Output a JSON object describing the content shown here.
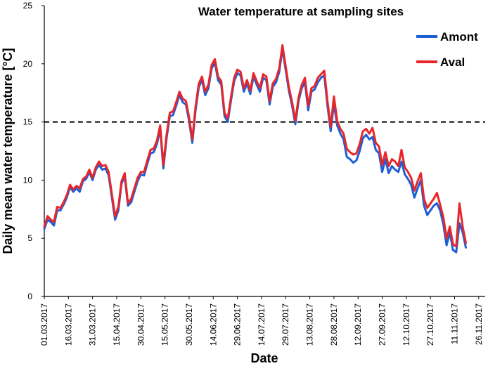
{
  "chart_data": {
    "type": "line",
    "title": "Water temperature at sampling sites",
    "xlabel": "Date",
    "ylabel": "Daily mean water temperature [°C]",
    "ylim": [
      0,
      25
    ],
    "yticks": [
      "0",
      "5",
      "10",
      "15",
      "20",
      "25"
    ],
    "xlim": [
      "01.03.2017",
      "30.11.2017"
    ],
    "xtick_labels": [
      "01.03.2017",
      "16.03.2017",
      "31.03.2017",
      "15.04.2017",
      "30.04.2017",
      "15.05.2017",
      "30.05.2017",
      "14.06.2017",
      "29.06.2017",
      "14.07.2017",
      "29.07.2017",
      "13.08.2017",
      "28.08.2017",
      "12.09.2017",
      "27.09.2017",
      "12.10.2017",
      "27.10.2017",
      "11.11.2017",
      "26.11.2017"
    ],
    "grid": false,
    "legend_position": "top-right",
    "reference_line": {
      "y": 15,
      "style": "dashed",
      "color": "#000000"
    },
    "series": [
      {
        "name": "Amont",
        "color": "#1f5fd6",
        "points": [
          [
            "01.03.2017",
            5.8
          ],
          [
            "03.03.2017",
            6.6
          ],
          [
            "05.03.2017",
            6.4
          ],
          [
            "07.03.2017",
            6.1
          ],
          [
            "09.03.2017",
            7.4
          ],
          [
            "11.03.2017",
            7.4
          ],
          [
            "13.03.2017",
            7.9
          ],
          [
            "15.03.2017",
            8.5
          ],
          [
            "17.03.2017",
            9.4
          ],
          [
            "19.03.2017",
            9.0
          ],
          [
            "21.03.2017",
            9.3
          ],
          [
            "23.03.2017",
            9.0
          ],
          [
            "25.03.2017",
            9.9
          ],
          [
            "27.03.2017",
            10.1
          ],
          [
            "29.03.2017",
            10.7
          ],
          [
            "31.03.2017",
            10.0
          ],
          [
            "02.04.2017",
            10.9
          ],
          [
            "04.04.2017",
            11.3
          ],
          [
            "06.04.2017",
            10.9
          ],
          [
            "08.04.2017",
            11.0
          ],
          [
            "10.04.2017",
            10.4
          ],
          [
            "12.04.2017",
            8.5
          ],
          [
            "14.04.2017",
            6.6
          ],
          [
            "16.04.2017",
            7.4
          ],
          [
            "18.04.2017",
            9.7
          ],
          [
            "20.04.2017",
            10.3
          ],
          [
            "22.04.2017",
            7.8
          ],
          [
            "24.04.2017",
            8.1
          ],
          [
            "26.04.2017",
            9.0
          ],
          [
            "28.04.2017",
            9.9
          ],
          [
            "30.04.2017",
            10.5
          ],
          [
            "02.05.2017",
            10.4
          ],
          [
            "04.05.2017",
            11.4
          ],
          [
            "06.05.2017",
            12.3
          ],
          [
            "08.05.2017",
            12.4
          ],
          [
            "10.05.2017",
            13.1
          ],
          [
            "12.05.2017",
            14.4
          ],
          [
            "14.05.2017",
            11.0
          ],
          [
            "16.05.2017",
            13.6
          ],
          [
            "18.05.2017",
            15.5
          ],
          [
            "20.05.2017",
            15.6
          ],
          [
            "22.05.2017",
            16.4
          ],
          [
            "24.05.2017",
            17.3
          ],
          [
            "26.05.2017",
            16.7
          ],
          [
            "28.05.2017",
            16.5
          ],
          [
            "30.05.2017",
            15.1
          ],
          [
            "01.06.2017",
            13.2
          ],
          [
            "03.06.2017",
            16.0
          ],
          [
            "05.06.2017",
            18.0
          ],
          [
            "07.06.2017",
            18.6
          ],
          [
            "09.06.2017",
            17.3
          ],
          [
            "11.06.2017",
            17.9
          ],
          [
            "13.06.2017",
            19.6
          ],
          [
            "15.06.2017",
            20.1
          ],
          [
            "17.06.2017",
            18.6
          ],
          [
            "19.06.2017",
            18.2
          ],
          [
            "21.06.2017",
            15.5
          ],
          [
            "23.06.2017",
            15.0
          ],
          [
            "25.06.2017",
            16.8
          ],
          [
            "27.06.2017",
            18.5
          ],
          [
            "29.06.2017",
            19.2
          ],
          [
            "01.07.2017",
            19.0
          ],
          [
            "03.07.2017",
            17.6
          ],
          [
            "05.07.2017",
            18.3
          ],
          [
            "07.07.2017",
            17.4
          ],
          [
            "09.07.2017",
            18.9
          ],
          [
            "11.07.2017",
            18.2
          ],
          [
            "13.07.2017",
            17.6
          ],
          [
            "15.07.2017",
            18.8
          ],
          [
            "17.07.2017",
            18.6
          ],
          [
            "19.07.2017",
            16.5
          ],
          [
            "21.07.2017",
            18.0
          ],
          [
            "23.07.2017",
            18.4
          ],
          [
            "25.07.2017",
            19.3
          ],
          [
            "27.07.2017",
            21.3
          ],
          [
            "29.07.2017",
            19.5
          ],
          [
            "31.07.2017",
            17.7
          ],
          [
            "02.08.2017",
            16.4
          ],
          [
            "04.08.2017",
            14.8
          ],
          [
            "06.08.2017",
            16.8
          ],
          [
            "08.08.2017",
            17.9
          ],
          [
            "10.08.2017",
            18.4
          ],
          [
            "12.08.2017",
            16.0
          ],
          [
            "14.08.2017",
            17.6
          ],
          [
            "16.08.2017",
            17.8
          ],
          [
            "18.08.2017",
            18.4
          ],
          [
            "20.08.2017",
            18.8
          ],
          [
            "22.08.2017",
            19.0
          ],
          [
            "24.08.2017",
            16.4
          ],
          [
            "26.08.2017",
            14.2
          ],
          [
            "28.08.2017",
            16.6
          ],
          [
            "30.08.2017",
            14.7
          ],
          [
            "01.09.2017",
            14.0
          ],
          [
            "03.09.2017",
            13.5
          ],
          [
            "05.09.2017",
            12.0
          ],
          [
            "07.09.2017",
            11.8
          ],
          [
            "09.09.2017",
            11.5
          ],
          [
            "11.09.2017",
            11.7
          ],
          [
            "13.09.2017",
            12.5
          ],
          [
            "15.09.2017",
            13.6
          ],
          [
            "17.09.2017",
            13.9
          ],
          [
            "19.09.2017",
            13.5
          ],
          [
            "21.09.2017",
            13.7
          ],
          [
            "23.09.2017",
            12.6
          ],
          [
            "25.09.2017",
            12.3
          ],
          [
            "27.09.2017",
            10.7
          ],
          [
            "29.09.2017",
            11.8
          ],
          [
            "01.10.2017",
            10.6
          ],
          [
            "03.10.2017",
            11.2
          ],
          [
            "05.10.2017",
            10.9
          ],
          [
            "07.10.2017",
            10.7
          ],
          [
            "09.10.2017",
            11.6
          ],
          [
            "11.10.2017",
            10.5
          ],
          [
            "13.10.2017",
            10.1
          ],
          [
            "15.10.2017",
            9.6
          ],
          [
            "17.10.2017",
            8.5
          ],
          [
            "19.10.2017",
            9.3
          ],
          [
            "21.10.2017",
            10.0
          ],
          [
            "23.10.2017",
            7.8
          ],
          [
            "25.10.2017",
            7.0
          ],
          [
            "27.10.2017",
            7.4
          ],
          [
            "29.10.2017",
            7.8
          ],
          [
            "31.10.2017",
            8.0
          ],
          [
            "02.11.2017",
            7.4
          ],
          [
            "04.11.2017",
            6.2
          ],
          [
            "06.11.2017",
            4.4
          ],
          [
            "08.11.2017",
            5.5
          ],
          [
            "10.11.2017",
            4.0
          ],
          [
            "12.11.2017",
            3.8
          ],
          [
            "14.11.2017",
            6.3
          ],
          [
            "16.11.2017",
            5.5
          ],
          [
            "18.11.2017",
            4.2
          ]
        ]
      },
      {
        "name": "Aval",
        "color": "#e8262a",
        "points": [
          [
            "01.03.2017",
            6.0
          ],
          [
            "03.03.2017",
            6.9
          ],
          [
            "05.03.2017",
            6.6
          ],
          [
            "07.03.2017",
            6.4
          ],
          [
            "09.03.2017",
            7.7
          ],
          [
            "11.03.2017",
            7.6
          ],
          [
            "13.03.2017",
            8.1
          ],
          [
            "15.03.2017",
            8.7
          ],
          [
            "17.03.2017",
            9.6
          ],
          [
            "19.03.2017",
            9.2
          ],
          [
            "21.03.2017",
            9.5
          ],
          [
            "23.03.2017",
            9.3
          ],
          [
            "25.03.2017",
            10.1
          ],
          [
            "27.03.2017",
            10.3
          ],
          [
            "29.03.2017",
            10.9
          ],
          [
            "31.03.2017",
            10.2
          ],
          [
            "02.04.2017",
            11.1
          ],
          [
            "04.04.2017",
            11.6
          ],
          [
            "06.04.2017",
            11.2
          ],
          [
            "08.04.2017",
            11.3
          ],
          [
            "10.04.2017",
            10.7
          ],
          [
            "12.04.2017",
            8.8
          ],
          [
            "14.04.2017",
            6.9
          ],
          [
            "16.04.2017",
            7.7
          ],
          [
            "18.04.2017",
            9.9
          ],
          [
            "20.04.2017",
            10.6
          ],
          [
            "22.04.2017",
            8.0
          ],
          [
            "24.04.2017",
            8.4
          ],
          [
            "26.04.2017",
            9.3
          ],
          [
            "28.04.2017",
            10.2
          ],
          [
            "30.04.2017",
            10.7
          ],
          [
            "02.05.2017",
            10.7
          ],
          [
            "04.05.2017",
            11.7
          ],
          [
            "06.05.2017",
            12.6
          ],
          [
            "08.05.2017",
            12.7
          ],
          [
            "10.05.2017",
            13.4
          ],
          [
            "12.05.2017",
            14.7
          ],
          [
            "14.05.2017",
            11.3
          ],
          [
            "16.05.2017",
            13.9
          ],
          [
            "18.05.2017",
            15.8
          ],
          [
            "20.05.2017",
            15.9
          ],
          [
            "22.05.2017",
            16.7
          ],
          [
            "24.05.2017",
            17.6
          ],
          [
            "26.05.2017",
            17.0
          ],
          [
            "28.05.2017",
            16.8
          ],
          [
            "30.05.2017",
            15.4
          ],
          [
            "01.06.2017",
            13.5
          ],
          [
            "03.06.2017",
            16.3
          ],
          [
            "05.06.2017",
            18.3
          ],
          [
            "07.06.2017",
            18.9
          ],
          [
            "09.06.2017",
            17.6
          ],
          [
            "11.06.2017",
            18.2
          ],
          [
            "13.06.2017",
            19.9
          ],
          [
            "15.06.2017",
            20.4
          ],
          [
            "17.06.2017",
            18.9
          ],
          [
            "19.06.2017",
            18.5
          ],
          [
            "21.06.2017",
            15.8
          ],
          [
            "23.06.2017",
            15.3
          ],
          [
            "25.06.2017",
            17.1
          ],
          [
            "27.06.2017",
            18.8
          ],
          [
            "29.06.2017",
            19.5
          ],
          [
            "01.07.2017",
            19.3
          ],
          [
            "03.07.2017",
            17.9
          ],
          [
            "05.07.2017",
            18.6
          ],
          [
            "07.07.2017",
            17.7
          ],
          [
            "09.07.2017",
            19.2
          ],
          [
            "11.07.2017",
            18.5
          ],
          [
            "13.07.2017",
            17.9
          ],
          [
            "15.07.2017",
            19.1
          ],
          [
            "17.07.2017",
            18.9
          ],
          [
            "19.07.2017",
            16.8
          ],
          [
            "21.07.2017",
            18.3
          ],
          [
            "23.07.2017",
            18.7
          ],
          [
            "25.07.2017",
            19.6
          ],
          [
            "27.07.2017",
            21.6
          ],
          [
            "29.07.2017",
            19.8
          ],
          [
            "31.07.2017",
            18.0
          ],
          [
            "02.08.2017",
            16.7
          ],
          [
            "04.08.2017",
            15.1
          ],
          [
            "06.08.2017",
            17.1
          ],
          [
            "08.08.2017",
            18.2
          ],
          [
            "10.08.2017",
            18.8
          ],
          [
            "12.08.2017",
            16.4
          ],
          [
            "14.08.2017",
            17.9
          ],
          [
            "16.08.2017",
            18.1
          ],
          [
            "18.08.2017",
            18.8
          ],
          [
            "20.08.2017",
            19.1
          ],
          [
            "22.08.2017",
            19.4
          ],
          [
            "24.08.2017",
            16.8
          ],
          [
            "26.08.2017",
            14.6
          ],
          [
            "28.08.2017",
            17.2
          ],
          [
            "30.08.2017",
            15.1
          ],
          [
            "01.09.2017",
            14.4
          ],
          [
            "03.09.2017",
            14.0
          ],
          [
            "05.09.2017",
            12.7
          ],
          [
            "07.09.2017",
            12.4
          ],
          [
            "09.09.2017",
            12.2
          ],
          [
            "11.09.2017",
            12.3
          ],
          [
            "13.09.2017",
            13.1
          ],
          [
            "15.09.2017",
            14.2
          ],
          [
            "17.09.2017",
            14.4
          ],
          [
            "19.09.2017",
            14.0
          ],
          [
            "21.09.2017",
            14.5
          ],
          [
            "23.09.2017",
            13.2
          ],
          [
            "25.09.2017",
            12.9
          ],
          [
            "27.09.2017",
            11.3
          ],
          [
            "29.09.2017",
            12.4
          ],
          [
            "01.10.2017",
            11.2
          ],
          [
            "03.10.2017",
            11.8
          ],
          [
            "05.10.2017",
            11.6
          ],
          [
            "07.10.2017",
            11.2
          ],
          [
            "09.10.2017",
            12.6
          ],
          [
            "11.10.2017",
            11.1
          ],
          [
            "13.10.2017",
            10.7
          ],
          [
            "15.10.2017",
            10.2
          ],
          [
            "17.10.2017",
            9.1
          ],
          [
            "19.10.2017",
            9.9
          ],
          [
            "21.10.2017",
            10.6
          ],
          [
            "23.10.2017",
            8.4
          ],
          [
            "25.10.2017",
            7.6
          ],
          [
            "27.10.2017",
            8.0
          ],
          [
            "29.10.2017",
            8.4
          ],
          [
            "31.10.2017",
            8.9
          ],
          [
            "02.11.2017",
            7.9
          ],
          [
            "04.11.2017",
            6.8
          ],
          [
            "06.11.2017",
            5.0
          ],
          [
            "08.11.2017",
            6.0
          ],
          [
            "10.11.2017",
            4.5
          ],
          [
            "12.11.2017",
            4.3
          ],
          [
            "14.11.2017",
            8.0
          ],
          [
            "16.11.2017",
            6.0
          ],
          [
            "18.11.2017",
            4.6
          ]
        ]
      }
    ]
  }
}
